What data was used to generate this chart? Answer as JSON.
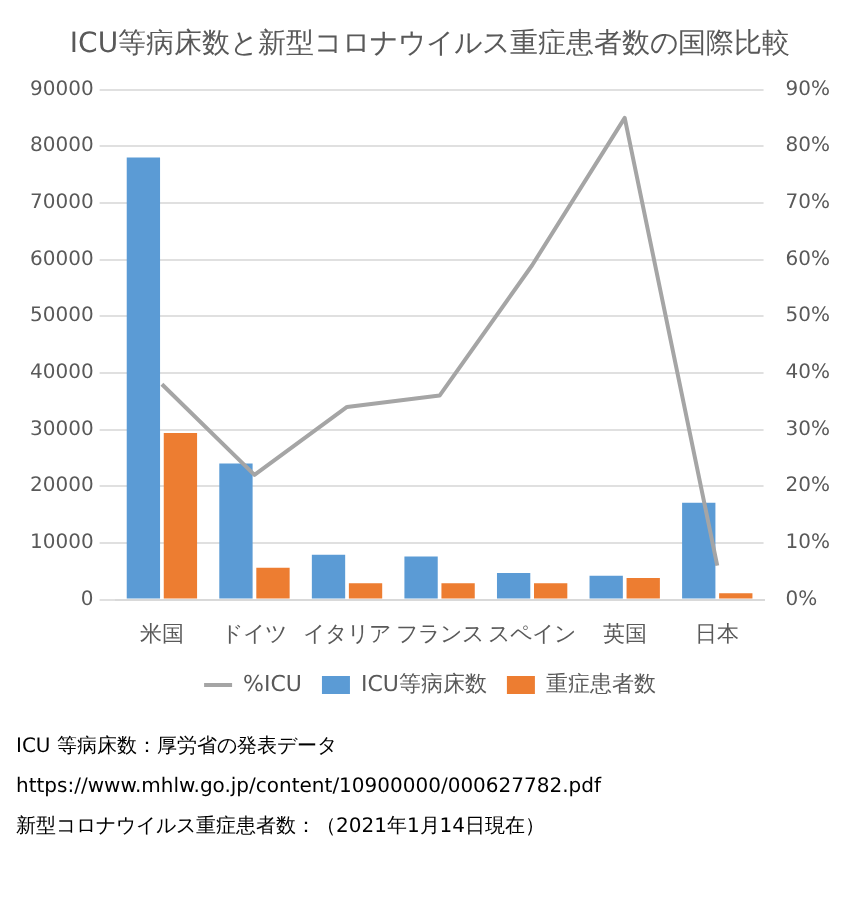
{
  "chart_data": {
    "type": "bar",
    "title": "ICU等病床数と新型コロナウイルス重症患者数の国際比較",
    "categories": [
      "米国",
      "ドイツ",
      "イタリア",
      "フランス",
      "スペイン",
      "英国",
      "日本"
    ],
    "series": [
      {
        "name": "ICU等病床数",
        "color": "#5b9bd5",
        "values": [
          78000,
          24000,
          7900,
          7600,
          4700,
          4200,
          17100
        ]
      },
      {
        "name": "重症患者数",
        "color": "#ed7d31",
        "values": [
          29400,
          5600,
          2900,
          2900,
          2900,
          3800,
          1100
        ]
      },
      {
        "name": "%ICU",
        "type": "line",
        "axis": "y2",
        "color": "#a5a5a5",
        "values": [
          38,
          22,
          34,
          36,
          59,
          85,
          6
        ]
      }
    ],
    "ylim": [
      0,
      90000
    ],
    "yticks": [
      0,
      10000,
      20000,
      30000,
      40000,
      50000,
      60000,
      70000,
      80000,
      90000
    ],
    "y2lim": [
      0,
      90
    ],
    "y2ticks": [
      {
        "value": 0,
        "label": "0%"
      },
      {
        "value": 10,
        "label": "10%"
      },
      {
        "value": 20,
        "label": "20%"
      },
      {
        "value": 30,
        "label": "30%"
      },
      {
        "value": 40,
        "label": "40%"
      },
      {
        "value": 50,
        "label": "50%"
      },
      {
        "value": 60,
        "label": "60%"
      },
      {
        "value": 70,
        "label": "70%"
      },
      {
        "value": 80,
        "label": "80%"
      },
      {
        "value": 90,
        "label": "90%"
      }
    ],
    "grid": "y",
    "legend": "bottom",
    "marker": "none",
    "line_style": "solid",
    "annotations": [
      "ICU 等病床数：厚労省の発表データ　https://www.mhlw.go.jp/content/10900000/000627782.pdf",
      "新型コロナウイルス重症患者数：（2021年1月14日現在）"
    ]
  }
}
